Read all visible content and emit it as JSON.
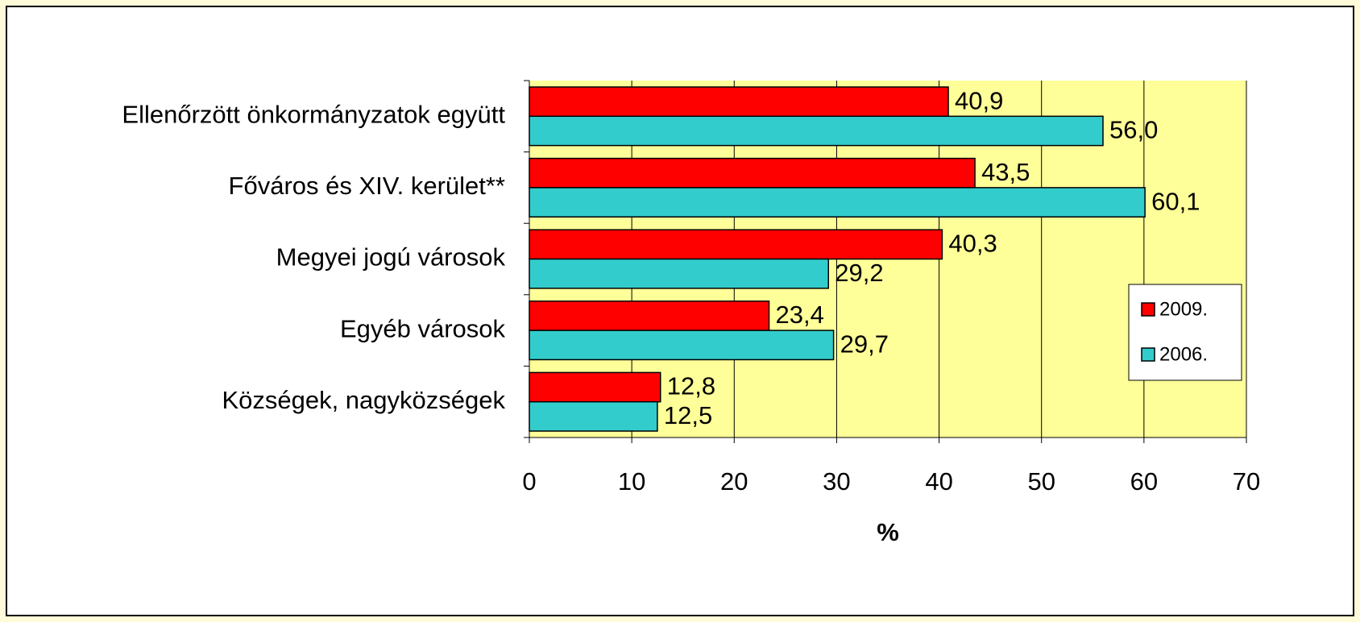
{
  "chart_data": {
    "type": "hbar",
    "categories": [
      "Ellenőrzött önkormányzatok együtt",
      "Főváros és XIV. kerület**",
      "Megyei jogú városok",
      "Egyéb városok",
      "Községek, nagyközségek"
    ],
    "series": [
      {
        "name": "2009.",
        "color": "#ff0000",
        "values": [
          40.9,
          43.5,
          40.3,
          23.4,
          12.8
        ],
        "value_labels": [
          "40,9",
          "43,5",
          "40,3",
          "23,4",
          "12,8"
        ]
      },
      {
        "name": "2006.",
        "color": "#33cccc",
        "values": [
          56.0,
          60.1,
          29.2,
          29.7,
          12.5
        ],
        "value_labels": [
          "56,0",
          "60,1",
          "29,2",
          "29,7",
          "12,5"
        ]
      }
    ],
    "xlim": [
      0,
      70
    ],
    "xticks": [
      0,
      10,
      20,
      30,
      40,
      50,
      60,
      70
    ],
    "xlabel": "%",
    "grid": true,
    "legend": "right"
  }
}
